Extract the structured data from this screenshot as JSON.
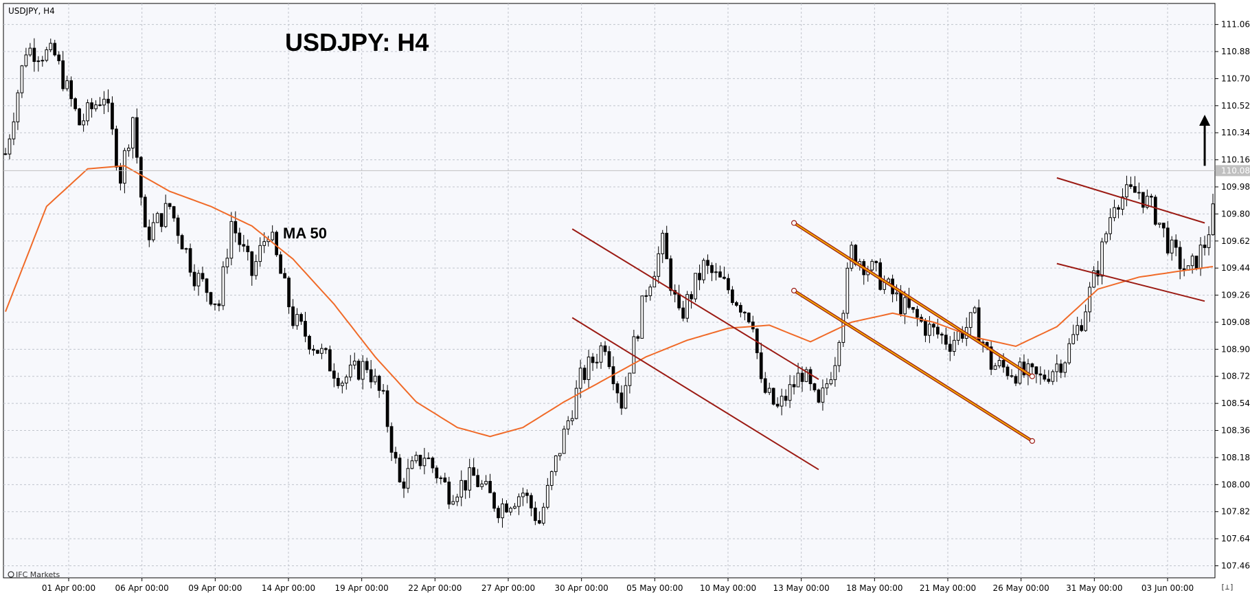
{
  "header": {
    "symbol": "USDJPY, H4",
    "title": "USDJPY: H4",
    "brand": "IFC Markets",
    "corner_button": "[⊥]"
  },
  "annotations": {
    "ma_label": "MA 50"
  },
  "colors": {
    "background": "#f7f8fc",
    "grid": "#c0c4cc",
    "candle_bull": "#ffffff",
    "candle_bear": "#000000",
    "ma_line": "#f06a28",
    "channel_red": "#9b1b14",
    "channel_orange": "#f2a900",
    "price_line": "#c0c0c0",
    "price_tag": "#c0c0c0"
  },
  "chart_data": {
    "type": "candlestick",
    "timeframe": "H4",
    "ylim": [
      107.38,
      111.2
    ],
    "y_ticks": [
      "111.060",
      "110.880",
      "110.700",
      "110.520",
      "110.340",
      "110.160",
      "109.980",
      "109.800",
      "109.620",
      "109.440",
      "109.260",
      "109.080",
      "108.900",
      "108.720",
      "108.540",
      "108.360",
      "108.180",
      "108.000",
      "107.820",
      "107.640",
      "107.460"
    ],
    "x_tick_labels": [
      "01 Apr 00:00",
      "06 Apr 00:00",
      "09 Apr 00:00",
      "14 Apr 00:00",
      "19 Apr 00:00",
      "22 Apr 00:00",
      "27 Apr 00:00",
      "30 Apr 00:00",
      "05 May 00:00",
      "10 May 00:00",
      "13 May 00:00",
      "18 May 00:00",
      "21 May 00:00",
      "26 May 00:00",
      "31 May 00:00",
      "03 Jun 00:00"
    ],
    "current_price": "110.088",
    "close_path": [
      [
        0,
        110.2
      ],
      [
        5,
        110.9
      ],
      [
        12,
        110.85
      ],
      [
        18,
        110.4
      ],
      [
        24,
        110.6
      ],
      [
        28,
        110.05
      ],
      [
        31,
        110.45
      ],
      [
        34,
        109.65
      ],
      [
        40,
        109.85
      ],
      [
        46,
        109.4
      ],
      [
        52,
        109.2
      ],
      [
        55,
        109.75
      ],
      [
        60,
        109.4
      ],
      [
        64,
        109.7
      ],
      [
        70,
        109.1
      ],
      [
        76,
        108.9
      ],
      [
        82,
        108.7
      ],
      [
        88,
        108.8
      ],
      [
        92,
        108.55
      ],
      [
        96,
        108.0
      ],
      [
        102,
        108.2
      ],
      [
        108,
        107.95
      ],
      [
        114,
        108.05
      ],
      [
        120,
        107.85
      ],
      [
        126,
        107.95
      ],
      [
        130,
        107.75
      ],
      [
        134,
        108.15
      ],
      [
        140,
        108.7
      ],
      [
        146,
        108.95
      ],
      [
        150,
        108.55
      ],
      [
        156,
        109.3
      ],
      [
        160,
        109.6
      ],
      [
        164,
        109.1
      ],
      [
        170,
        109.45
      ],
      [
        176,
        109.3
      ],
      [
        182,
        109.1
      ],
      [
        184,
        108.65
      ],
      [
        188,
        108.5
      ],
      [
        194,
        108.75
      ],
      [
        198,
        108.5
      ],
      [
        202,
        108.85
      ],
      [
        206,
        109.55
      ],
      [
        212,
        109.4
      ],
      [
        218,
        109.2
      ],
      [
        224,
        109.05
      ],
      [
        230,
        108.95
      ],
      [
        236,
        109.1
      ],
      [
        240,
        108.8
      ],
      [
        246,
        108.75
      ],
      [
        252,
        108.7
      ],
      [
        258,
        108.85
      ],
      [
        262,
        109.1
      ],
      [
        266,
        109.45
      ],
      [
        270,
        109.9
      ],
      [
        276,
        109.95
      ],
      [
        280,
        109.8
      ],
      [
        284,
        109.55
      ],
      [
        288,
        109.4
      ],
      [
        292,
        109.6
      ],
      [
        294,
        109.8
      ]
    ],
    "ma50_path": [
      [
        0,
        109.15
      ],
      [
        10,
        109.85
      ],
      [
        20,
        110.1
      ],
      [
        29,
        110.12
      ],
      [
        40,
        109.95
      ],
      [
        50,
        109.85
      ],
      [
        60,
        109.72
      ],
      [
        70,
        109.5
      ],
      [
        80,
        109.2
      ],
      [
        90,
        108.85
      ],
      [
        100,
        108.55
      ],
      [
        110,
        108.38
      ],
      [
        118,
        108.32
      ],
      [
        126,
        108.38
      ],
      [
        136,
        108.55
      ],
      [
        146,
        108.7
      ],
      [
        156,
        108.85
      ],
      [
        166,
        108.96
      ],
      [
        176,
        109.04
      ],
      [
        186,
        109.06
      ],
      [
        196,
        108.95
      ],
      [
        206,
        109.08
      ],
      [
        216,
        109.14
      ],
      [
        226,
        109.08
      ],
      [
        236,
        108.98
      ],
      [
        246,
        108.92
      ],
      [
        256,
        109.05
      ],
      [
        266,
        109.3
      ],
      [
        276,
        109.38
      ],
      [
        286,
        109.42
      ],
      [
        294,
        109.45
      ]
    ],
    "trend_lines": [
      {
        "color": "red",
        "points": [
          [
            138,
            109.7
          ],
          [
            198,
            108.7
          ]
        ]
      },
      {
        "color": "red",
        "points": [
          [
            138,
            109.11
          ],
          [
            198,
            108.1
          ]
        ]
      },
      {
        "color": "red",
        "points": [
          [
            256,
            110.04
          ],
          [
            292,
            109.74
          ]
        ]
      },
      {
        "color": "red",
        "points": [
          [
            256,
            109.47
          ],
          [
            292,
            109.22
          ]
        ]
      },
      {
        "color": "orange",
        "points": [
          [
            192,
            109.74
          ],
          [
            250,
            108.72
          ]
        ]
      },
      {
        "color": "orange",
        "points": [
          [
            192,
            109.29
          ],
          [
            250,
            108.29
          ]
        ]
      }
    ],
    "arrow": {
      "direction": "up",
      "at_x": 292,
      "from": 110.12,
      "to": 110.46
    }
  }
}
